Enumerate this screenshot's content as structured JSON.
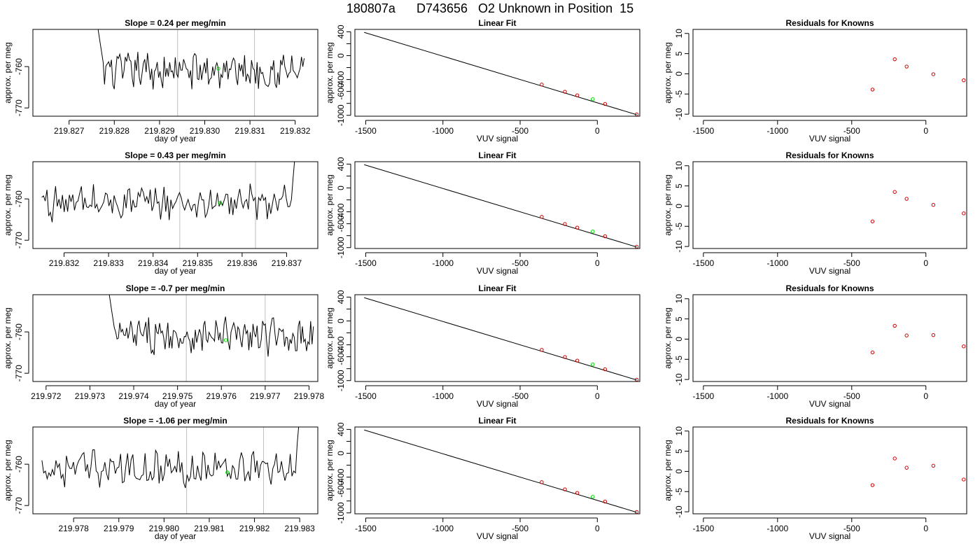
{
  "figure": {
    "title": "180807a      D743656   O2 Unknown in Position  15"
  },
  "colors": {
    "trace": "#000000",
    "vline": "#bebebe",
    "marker_green": "#00dd00",
    "marker_red": "#cc0000",
    "fit_line": "#000000"
  },
  "chart_data": [
    {
      "type": "line",
      "row": 1,
      "panel": "timeseries",
      "title": "Slope =  0.24  per meg/min",
      "xlabel": "day of year",
      "ylabel": "approx. per meg",
      "xlim": [
        219.8262,
        219.8325
      ],
      "ylim": [
        -772,
        -751
      ],
      "xticks": [
        219.827,
        219.828,
        219.829,
        219.83,
        219.831,
        219.832
      ],
      "xtick_labels": [
        "219.827",
        "219.828",
        "219.829",
        "219.830",
        "219.831",
        "219.832"
      ],
      "yticks": [
        -770,
        -760
      ],
      "ytick_labels": [
        "-770",
        "-760"
      ],
      "vlines": [
        219.8294,
        219.8311
      ],
      "trace_start": 219.8276,
      "trace_end": 219.8322,
      "green_point": {
        "x": 219.8303,
        "y": -760.5
      },
      "spike": "start"
    },
    {
      "type": "scatter",
      "row": 1,
      "panel": "fit",
      "title": "Linear Fit",
      "xlabel": "VUV signal",
      "ylabel": "approx. per meg",
      "xlim": [
        -1570,
        275
      ],
      "ylim": [
        -1015,
        440
      ],
      "xticks": [
        -1500,
        -1000,
        -500,
        0
      ],
      "xtick_labels": [
        "-1500",
        "-1000",
        "-500",
        "0"
      ],
      "yticks": [
        -1000,
        -800,
        -600,
        -400,
        -200,
        0,
        200,
        400
      ],
      "ytick_labels": [
        "-1000",
        "",
        "-600",
        "-400",
        "",
        "0",
        "",
        "400"
      ],
      "line": {
        "x": [
          -1510,
          255
        ],
        "y": [
          390,
          -990
        ]
      },
      "red_points": [
        {
          "x": -360,
          "y": -485
        },
        {
          "x": -210,
          "y": -605
        },
        {
          "x": -130,
          "y": -665
        },
        {
          "x": 50,
          "y": -810
        },
        {
          "x": 255,
          "y": -985
        }
      ],
      "green_point": {
        "x": -30,
        "y": -730
      }
    },
    {
      "type": "scatter",
      "row": 1,
      "panel": "residuals",
      "title": "Residuals for Knowns",
      "xlabel": "VUV signal",
      "ylabel": "approx. per meg",
      "xlim": [
        -1570,
        275
      ],
      "ylim": [
        -10.5,
        11
      ],
      "xticks": [
        -1500,
        -1000,
        -500,
        0
      ],
      "xtick_labels": [
        "-1500",
        "-1000",
        "-500",
        "0"
      ],
      "yticks": [
        -10,
        -5,
        0,
        5,
        10
      ],
      "ytick_labels": [
        "-10",
        "-5",
        "0",
        "5",
        "10"
      ],
      "red_points": [
        {
          "x": -360,
          "y": -3.9
        },
        {
          "x": -210,
          "y": 3.6
        },
        {
          "x": -130,
          "y": 1.8
        },
        {
          "x": 50,
          "y": -0.1
        },
        {
          "x": 255,
          "y": -1.6
        }
      ]
    },
    {
      "type": "line",
      "row": 2,
      "panel": "timeseries",
      "title": "Slope =  0.43  per meg/min",
      "xlabel": "day of year",
      "ylabel": "approx. per meg",
      "xlim": [
        219.8313,
        219.8377
      ],
      "ylim": [
        -772,
        -751
      ],
      "xticks": [
        219.832,
        219.833,
        219.834,
        219.835,
        219.836,
        219.837
      ],
      "xtick_labels": [
        "219.832",
        "219.833",
        "219.834",
        "219.835",
        "219.836",
        "219.837"
      ],
      "yticks": [
        -770,
        -760
      ],
      "ytick_labels": [
        "-770",
        "-760"
      ],
      "vlines": [
        219.8346,
        219.8363
      ],
      "trace_start": 219.8315,
      "trace_end": 219.8373,
      "green_point": {
        "x": 219.8355,
        "y": -761
      },
      "spike": "end"
    },
    {
      "type": "scatter",
      "row": 2,
      "panel": "fit",
      "title": "Linear Fit",
      "xlabel": "VUV signal",
      "ylabel": "approx. per meg",
      "xlim": [
        -1570,
        275
      ],
      "ylim": [
        -1015,
        440
      ],
      "xticks": [
        -1500,
        -1000,
        -500,
        0
      ],
      "xtick_labels": [
        "-1500",
        "-1000",
        "-500",
        "0"
      ],
      "yticks": [
        -1000,
        -800,
        -600,
        -400,
        -200,
        0,
        200,
        400
      ],
      "ytick_labels": [
        "-1000",
        "",
        "-600",
        "-400",
        "",
        "0",
        "",
        "400"
      ],
      "line": {
        "x": [
          -1510,
          255
        ],
        "y": [
          390,
          -990
        ]
      },
      "red_points": [
        {
          "x": -360,
          "y": -485
        },
        {
          "x": -210,
          "y": -605
        },
        {
          "x": -130,
          "y": -665
        },
        {
          "x": 50,
          "y": -810
        },
        {
          "x": 255,
          "y": -985
        }
      ],
      "green_point": {
        "x": -30,
        "y": -730
      }
    },
    {
      "type": "scatter",
      "row": 2,
      "panel": "residuals",
      "title": "Residuals for Knowns",
      "xlabel": "VUV signal",
      "ylabel": "approx. per meg",
      "xlim": [
        -1570,
        275
      ],
      "ylim": [
        -10.5,
        11
      ],
      "xticks": [
        -1500,
        -1000,
        -500,
        0
      ],
      "xtick_labels": [
        "-1500",
        "-1000",
        "-500",
        "0"
      ],
      "yticks": [
        -10,
        -5,
        0,
        5,
        10
      ],
      "ytick_labels": [
        "-10",
        "-5",
        "0",
        "5",
        "10"
      ],
      "red_points": [
        {
          "x": -360,
          "y": -3.8
        },
        {
          "x": -210,
          "y": 3.5
        },
        {
          "x": -130,
          "y": 1.8
        },
        {
          "x": 50,
          "y": 0.3
        },
        {
          "x": 255,
          "y": -1.8
        }
      ]
    },
    {
      "type": "line",
      "row": 3,
      "panel": "timeseries",
      "title": "Slope =  -0.7  per meg/min",
      "xlabel": "day of year",
      "ylabel": "approx. per meg",
      "xlim": [
        219.9717,
        219.9782
      ],
      "ylim": [
        -772,
        -751
      ],
      "xticks": [
        219.972,
        219.973,
        219.974,
        219.975,
        219.976,
        219.977,
        219.978
      ],
      "xtick_labels": [
        "219.972",
        "219.973",
        "219.974",
        "219.975",
        "219.976",
        "219.977",
        "219.978"
      ],
      "yticks": [
        -770,
        -760
      ],
      "ytick_labels": [
        "-770",
        "-760"
      ],
      "vlines": [
        219.9752,
        219.977
      ],
      "trace_start": 219.9734,
      "trace_end": 219.9781,
      "green_point": {
        "x": 219.9761,
        "y": -762
      },
      "spike": "start"
    },
    {
      "type": "scatter",
      "row": 3,
      "panel": "fit",
      "title": "Linear Fit",
      "xlabel": "VUV signal",
      "ylabel": "approx. per meg",
      "xlim": [
        -1570,
        275
      ],
      "ylim": [
        -1015,
        440
      ],
      "xticks": [
        -1500,
        -1000,
        -500,
        0
      ],
      "xtick_labels": [
        "-1500",
        "-1000",
        "-500",
        "0"
      ],
      "yticks": [
        -1000,
        -800,
        -600,
        -400,
        -200,
        0,
        200,
        400
      ],
      "ytick_labels": [
        "-1000",
        "",
        "-600",
        "-400",
        "",
        "0",
        "",
        "400"
      ],
      "line": {
        "x": [
          -1510,
          255
        ],
        "y": [
          390,
          -990
        ]
      },
      "red_points": [
        {
          "x": -360,
          "y": -485
        },
        {
          "x": -210,
          "y": -605
        },
        {
          "x": -130,
          "y": -665
        },
        {
          "x": 50,
          "y": -810
        },
        {
          "x": 255,
          "y": -985
        }
      ],
      "green_point": {
        "x": -30,
        "y": -730
      }
    },
    {
      "type": "scatter",
      "row": 3,
      "panel": "residuals",
      "title": "Residuals for Knowns",
      "xlabel": "VUV signal",
      "ylabel": "approx. per meg",
      "xlim": [
        -1570,
        275
      ],
      "ylim": [
        -10.5,
        11
      ],
      "xticks": [
        -1500,
        -1000,
        -500,
        0
      ],
      "xtick_labels": [
        "-1500",
        "-1000",
        "-500",
        "0"
      ],
      "yticks": [
        -10,
        -5,
        0,
        5,
        10
      ],
      "ytick_labels": [
        "-10",
        "-5",
        "0",
        "5",
        "10"
      ],
      "red_points": [
        {
          "x": -360,
          "y": -3.3
        },
        {
          "x": -210,
          "y": 3.3
        },
        {
          "x": -130,
          "y": 0.9
        },
        {
          "x": 50,
          "y": 1.0
        },
        {
          "x": 255,
          "y": -1.8
        }
      ]
    },
    {
      "type": "line",
      "row": 4,
      "panel": "timeseries",
      "title": "Slope =  -1.06  per meg/min",
      "xlabel": "day of year",
      "ylabel": "approx. per meg",
      "xlim": [
        219.9771,
        219.9834
      ],
      "ylim": [
        -772,
        -751
      ],
      "xticks": [
        219.978,
        219.979,
        219.98,
        219.981,
        219.982,
        219.983
      ],
      "xtick_labels": [
        "219.978",
        "219.979",
        "219.980",
        "219.981",
        "219.982",
        "219.983"
      ],
      "yticks": [
        -770,
        -760
      ],
      "ytick_labels": [
        "-770",
        "-760"
      ],
      "vlines": [
        219.9805,
        219.9822
      ],
      "trace_start": 219.9773,
      "trace_end": 219.9831,
      "green_point": {
        "x": 219.9814,
        "y": -762
      },
      "spike": "end"
    },
    {
      "type": "scatter",
      "row": 4,
      "panel": "fit",
      "title": "Linear Fit",
      "xlabel": "VUV signal",
      "ylabel": "approx. per meg",
      "xlim": [
        -1570,
        275
      ],
      "ylim": [
        -1015,
        440
      ],
      "xticks": [
        -1500,
        -1000,
        -500,
        0
      ],
      "xtick_labels": [
        "-1500",
        "-1000",
        "-500",
        "0"
      ],
      "yticks": [
        -1000,
        -800,
        -600,
        -400,
        -200,
        0,
        200,
        400
      ],
      "ytick_labels": [
        "-1000",
        "",
        "-600",
        "-400",
        "",
        "0",
        "",
        "400"
      ],
      "line": {
        "x": [
          -1510,
          255
        ],
        "y": [
          390,
          -990
        ]
      },
      "red_points": [
        {
          "x": -360,
          "y": -485
        },
        {
          "x": -210,
          "y": -605
        },
        {
          "x": -130,
          "y": -665
        },
        {
          "x": 50,
          "y": -810
        },
        {
          "x": 255,
          "y": -985
        }
      ],
      "green_point": {
        "x": -30,
        "y": -730
      }
    },
    {
      "type": "scatter",
      "row": 4,
      "panel": "residuals",
      "title": "Residuals for Knowns",
      "xlabel": "VUV signal",
      "ylabel": "approx. per meg",
      "xlim": [
        -1570,
        275
      ],
      "ylim": [
        -10.5,
        11
      ],
      "xticks": [
        -1500,
        -1000,
        -500,
        0
      ],
      "xtick_labels": [
        "-1500",
        "-1000",
        "-500",
        "0"
      ],
      "yticks": [
        -10,
        -5,
        0,
        5,
        10
      ],
      "ytick_labels": [
        "-10",
        "-5",
        "0",
        "5",
        "10"
      ],
      "red_points": [
        {
          "x": -360,
          "y": -3.4
        },
        {
          "x": -210,
          "y": 3.2
        },
        {
          "x": -130,
          "y": 0.9
        },
        {
          "x": 50,
          "y": 1.4
        },
        {
          "x": 255,
          "y": -2.0
        }
      ]
    }
  ]
}
